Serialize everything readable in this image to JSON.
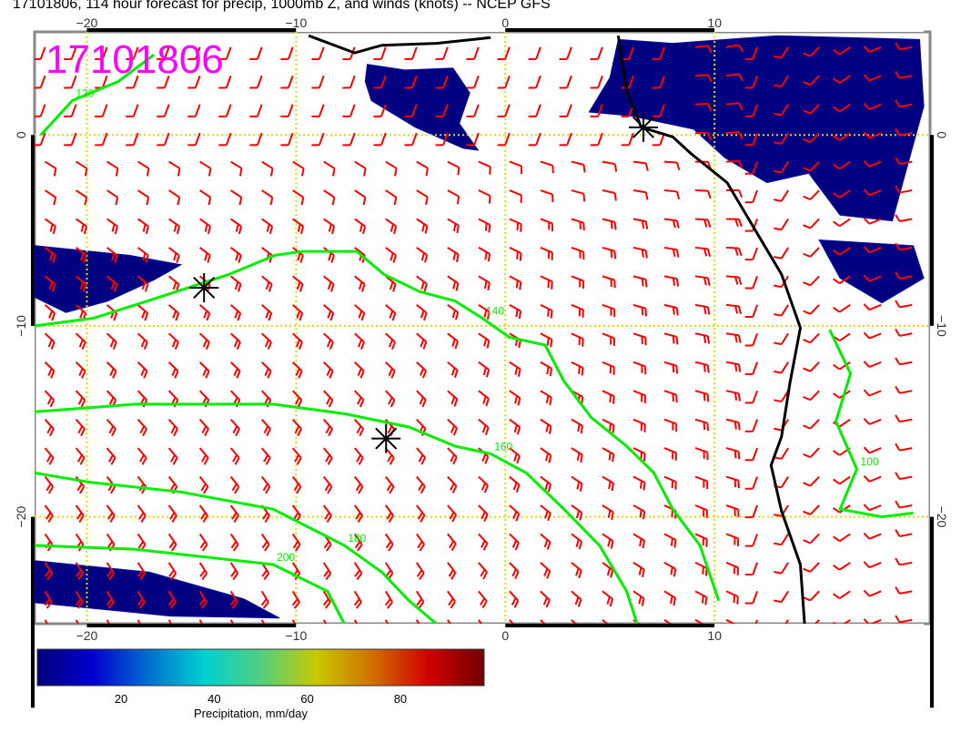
{
  "title": "17101806, 114 hour forecast for precip, 1000mb Z, and winds (knots) -- NCEP GFS",
  "stamp": "17101806",
  "map": {
    "lon_range": [
      -22.5,
      20.3
    ],
    "lat_range": [
      -25.6,
      5.4
    ],
    "lon_ticks": [
      -20,
      -10,
      0,
      10
    ],
    "lat_ticks": [
      0,
      -10,
      -20
    ],
    "lon_tick_labels": [
      "−20",
      "−10",
      "0",
      "10"
    ],
    "lat_tick_labels": [
      "0",
      "−10",
      "−20"
    ],
    "colors": {
      "barb": "#ff0000",
      "contour": "#00ee00",
      "coast": "#000000",
      "grid": "#dddd00",
      "precip_low": "#000080",
      "stamp": "#ff00ff"
    },
    "stars": [
      [
        -14.4,
        -8.0
      ],
      [
        -5.7,
        -15.9
      ],
      [
        6.6,
        0.4
      ]
    ],
    "coastline": [
      [
        5.4,
        5.2
      ],
      [
        5.8,
        2.3
      ],
      [
        6.5,
        0.4
      ],
      [
        8.0,
        -0.1
      ],
      [
        8.9,
        -1.0
      ],
      [
        10.6,
        -2.5
      ],
      [
        11.9,
        -4.9
      ],
      [
        13.2,
        -7.3
      ],
      [
        14.1,
        -10.1
      ],
      [
        13.6,
        -13.0
      ],
      [
        13.2,
        -15.8
      ],
      [
        12.7,
        -17.3
      ],
      [
        13.2,
        -19.7
      ],
      [
        14.1,
        -22.5
      ],
      [
        14.3,
        -25.6
      ]
    ],
    "north_coast": [
      [
        -9.4,
        5.2
      ],
      [
        -7.2,
        4.3
      ],
      [
        -5.9,
        4.7
      ],
      [
        -3.3,
        4.8
      ],
      [
        -0.7,
        5.1
      ]
    ],
    "contours": [
      {
        "level": "140",
        "points": [
          [
            -22.5,
            -10.0
          ],
          [
            -19.7,
            -9.6
          ],
          [
            -17.1,
            -8.7
          ],
          [
            -13.2,
            -7.3
          ],
          [
            -11.0,
            -6.3
          ],
          [
            -9.7,
            -6.1
          ],
          [
            -7.1,
            -6.1
          ],
          [
            -5.8,
            -7.3
          ],
          [
            -4.1,
            -8.2
          ],
          [
            -2.4,
            -8.7
          ],
          [
            -1.1,
            -9.6
          ],
          [
            0.2,
            -10.6
          ],
          [
            1.9,
            -11.0
          ],
          [
            2.8,
            -12.9
          ],
          [
            4.1,
            -14.8
          ],
          [
            5.8,
            -16.3
          ],
          [
            7.1,
            -17.7
          ],
          [
            8.0,
            -19.6
          ],
          [
            9.3,
            -21.5
          ],
          [
            10.2,
            -24.4
          ]
        ]
      },
      {
        "level": "160",
        "points": [
          [
            -22.5,
            -14.5
          ],
          [
            -17.7,
            -14.1
          ],
          [
            -11.1,
            -14.1
          ],
          [
            -7.7,
            -14.6
          ],
          [
            -4.6,
            -15.3
          ],
          [
            -2.4,
            -16.3
          ],
          [
            -0.7,
            -16.7
          ],
          [
            1.0,
            -17.7
          ],
          [
            2.8,
            -19.6
          ],
          [
            4.5,
            -21.5
          ],
          [
            5.8,
            -23.9
          ],
          [
            6.3,
            -25.6
          ]
        ]
      },
      {
        "level": "180",
        "points": [
          [
            -22.5,
            -17.7
          ],
          [
            -19.8,
            -18.2
          ],
          [
            -15.5,
            -18.7
          ],
          [
            -11.1,
            -19.6
          ],
          [
            -7.7,
            -21.5
          ],
          [
            -5.9,
            -22.9
          ],
          [
            -4.6,
            -24.4
          ],
          [
            -3.3,
            -25.6
          ]
        ]
      },
      {
        "level": "200",
        "points": [
          [
            -22.5,
            -21.5
          ],
          [
            -17.7,
            -21.7
          ],
          [
            -11.1,
            -22.5
          ],
          [
            -8.5,
            -23.9
          ],
          [
            -7.7,
            -25.6
          ]
        ]
      },
      {
        "level": "120",
        "points": [
          [
            -22.2,
            0.0
          ],
          [
            -20.7,
            1.8
          ],
          [
            -18.5,
            2.8
          ],
          [
            -16.8,
            4.2
          ]
        ]
      },
      {
        "level": "100",
        "points": [
          [
            15.5,
            -10.2
          ],
          [
            16.5,
            -12.5
          ],
          [
            15.8,
            -15.0
          ],
          [
            16.8,
            -17.5
          ],
          [
            16.0,
            -19.6
          ],
          [
            18.0,
            -20.0
          ],
          [
            19.5,
            -19.8
          ]
        ]
      }
    ],
    "precip_areas": [
      [
        [
          -6.6,
          3.7
        ],
        [
          -4.8,
          3.4
        ],
        [
          -2.5,
          3.5
        ],
        [
          -1.7,
          2.2
        ],
        [
          -2.2,
          0.6
        ],
        [
          -1.3,
          -0.8
        ],
        [
          -2.0,
          -0.7
        ],
        [
          -4.3,
          0.4
        ],
        [
          -6.4,
          1.8
        ],
        [
          -6.7,
          2.8
        ]
      ],
      [
        [
          5.4,
          5.0
        ],
        [
          8.0,
          4.8
        ],
        [
          13.0,
          5.2
        ],
        [
          19.8,
          5.0
        ],
        [
          20.0,
          1.5
        ],
        [
          19.0,
          -2.5
        ],
        [
          18.5,
          -4.5
        ],
        [
          16.0,
          -4.2
        ],
        [
          14.5,
          -2.0
        ],
        [
          12.5,
          -2.5
        ],
        [
          10.5,
          -1.2
        ],
        [
          9.0,
          0.3
        ],
        [
          6.0,
          1.0
        ],
        [
          4.0,
          1.2
        ],
        [
          5.0,
          3.0
        ]
      ],
      [
        [
          -22.5,
          -5.8
        ],
        [
          -18.0,
          -6.3
        ],
        [
          -15.5,
          -6.8
        ],
        [
          -16.8,
          -7.6
        ],
        [
          -19.0,
          -8.7
        ],
        [
          -21.0,
          -9.3
        ],
        [
          -22.5,
          -8.5
        ]
      ],
      [
        [
          -22.5,
          -22.3
        ],
        [
          -17.0,
          -22.9
        ],
        [
          -12.5,
          -24.3
        ],
        [
          -10.8,
          -25.3
        ],
        [
          -16.0,
          -25.2
        ],
        [
          -22.5,
          -24.5
        ]
      ],
      [
        [
          15.0,
          -5.5
        ],
        [
          19.5,
          -5.8
        ],
        [
          20.0,
          -7.5
        ],
        [
          18.0,
          -8.8
        ],
        [
          16.0,
          -7.5
        ]
      ]
    ]
  },
  "colorbar": {
    "label": "Precipitation, mm/day",
    "range": [
      2,
      98
    ],
    "ticks": [
      "20",
      "40",
      "60",
      "80"
    ],
    "colors": [
      "#00007a",
      "#0000d0",
      "#0070d0",
      "#00d0d0",
      "#50d080",
      "#c8c800",
      "#d07000",
      "#d00000",
      "#700000"
    ]
  }
}
